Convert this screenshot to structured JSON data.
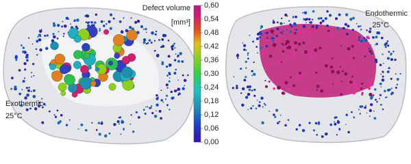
{
  "panels": [
    {
      "label": "Exothermic",
      "temperature": "25°C"
    },
    {
      "label": "Endothermic",
      "temperature": "25°C"
    }
  ],
  "colorbar": {
    "title": "Defect volume",
    "unit": "[mm³]",
    "ticks": [
      {
        "value": 0.6,
        "label": "0,60"
      },
      {
        "value": 0.54,
        "label": "0,54"
      },
      {
        "value": 0.48,
        "label": "0,48"
      },
      {
        "value": 0.42,
        "label": "0,42"
      },
      {
        "value": 0.36,
        "label": "0,36"
      },
      {
        "value": 0.3,
        "label": "0,30"
      },
      {
        "value": 0.24,
        "label": "0,24"
      },
      {
        "value": 0.18,
        "label": "0,18"
      },
      {
        "value": 0.12,
        "label": "0,12"
      },
      {
        "value": 0.06,
        "label": "0,06"
      },
      {
        "value": 0,
        "label": "0,00"
      }
    ]
  }
}
